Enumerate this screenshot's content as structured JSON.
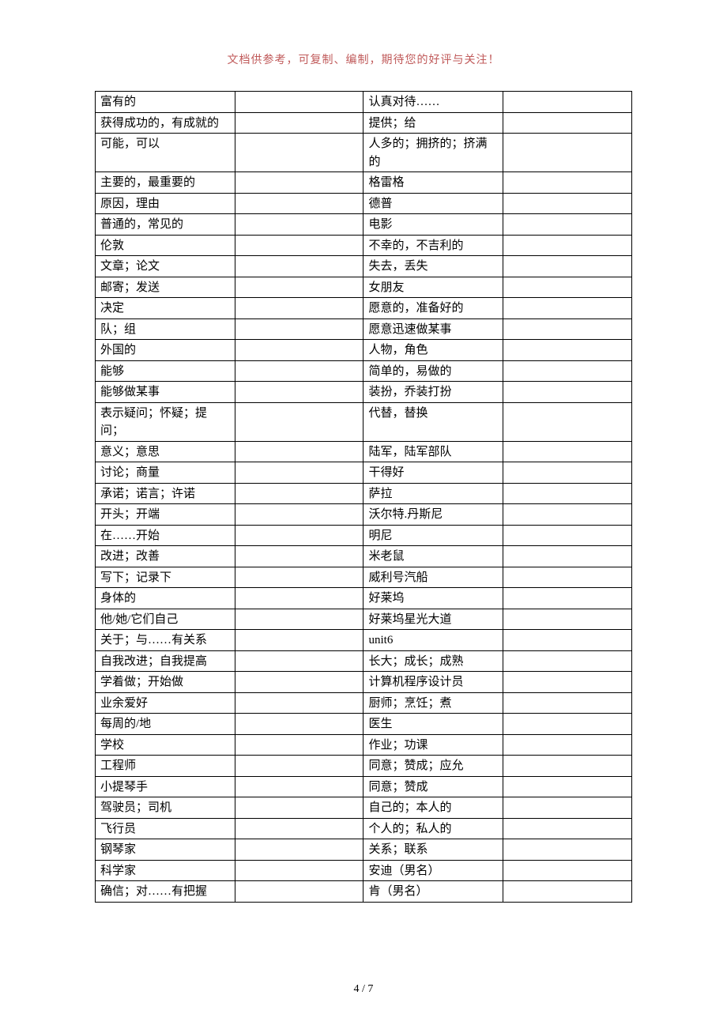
{
  "header": {
    "note": "文档供参考，可复制、编制，期待您的好评与关注！",
    "color": "#c05a5a",
    "fontsize": 14
  },
  "table": {
    "fontsize": 15,
    "text_color": "#000000",
    "border_color": "#000000",
    "rows": [
      {
        "c1": "富有的",
        "c3": "认真对待……"
      },
      {
        "c1": "获得成功的，有成就的",
        "c3": "提供；给"
      },
      {
        "c1": "可能，可以",
        "c3": "人多的；拥挤的；挤满的"
      },
      {
        "c1": "主要的，最重要的",
        "c3": "格雷格"
      },
      {
        "c1": "原因，理由",
        "c3": "德普"
      },
      {
        "c1": "普通的，常见的",
        "c3": "电影"
      },
      {
        "c1": "伦敦",
        "c3": "不幸的，不吉利的"
      },
      {
        "c1": "文章；论文",
        "c3": "失去，丢失"
      },
      {
        "c1": "邮寄；发送",
        "c3": "女朋友"
      },
      {
        "c1": "决定",
        "c3": "愿意的，准备好的"
      },
      {
        "c1": "队；组",
        "c3": "愿意迅速做某事"
      },
      {
        "c1": "外国的",
        "c3": "人物，角色"
      },
      {
        "c1": "能够",
        "c3": "简单的，易做的"
      },
      {
        "c1": "能够做某事",
        "c3": "装扮，乔装打扮"
      },
      {
        "c1": "表示疑问；怀疑；提问；",
        "c3": "代替，替换"
      },
      {
        "c1": "意义；意思",
        "c3": "陆军，陆军部队"
      },
      {
        "c1": "讨论；商量",
        "c3": "干得好"
      },
      {
        "c1": "承诺；诺言；许诺",
        "c3": "萨拉"
      },
      {
        "c1": "开头；开端",
        "c3": "沃尔特.丹斯尼"
      },
      {
        "c1": "在……开始",
        "c3": "明尼"
      },
      {
        "c1": "改进；改善",
        "c3": "米老鼠"
      },
      {
        "c1": "写下；记录下",
        "c3": "威利号汽船"
      },
      {
        "c1": "身体的",
        "c3": "好莱坞"
      },
      {
        "c1": "他/她/它们自己",
        "c3": "好莱坞星光大道"
      },
      {
        "c1": "关于；与……有关系",
        "c3": "unit6"
      },
      {
        "c1": "自我改进；自我提高",
        "c3": "长大；成长；成熟"
      },
      {
        "c1": "学着做；开始做",
        "c3": "计算机程序设计员"
      },
      {
        "c1": "业余爱好",
        "c3": "厨师；烹饪；煮"
      },
      {
        "c1": "每周的/地",
        "c3": "医生"
      },
      {
        "c1": "学校",
        "c3": "作业；功课"
      },
      {
        "c1": "工程师",
        "c3": "同意；赞成；应允"
      },
      {
        "c1": "小提琴手",
        "c3": "同意；赞成"
      },
      {
        "c1": "驾驶员；司机",
        "c3": "自己的；本人的"
      },
      {
        "c1": "飞行员",
        "c3": "个人的；私人的"
      },
      {
        "c1": "钢琴家",
        "c3": "关系；联系"
      },
      {
        "c1": "科学家",
        "c3": "安迪（男名）"
      },
      {
        "c1": "确信；对……有把握",
        "c3": "肯（男名）"
      }
    ]
  },
  "footer": {
    "text": "4 / 7",
    "fontsize": 14,
    "color": "#000000"
  }
}
